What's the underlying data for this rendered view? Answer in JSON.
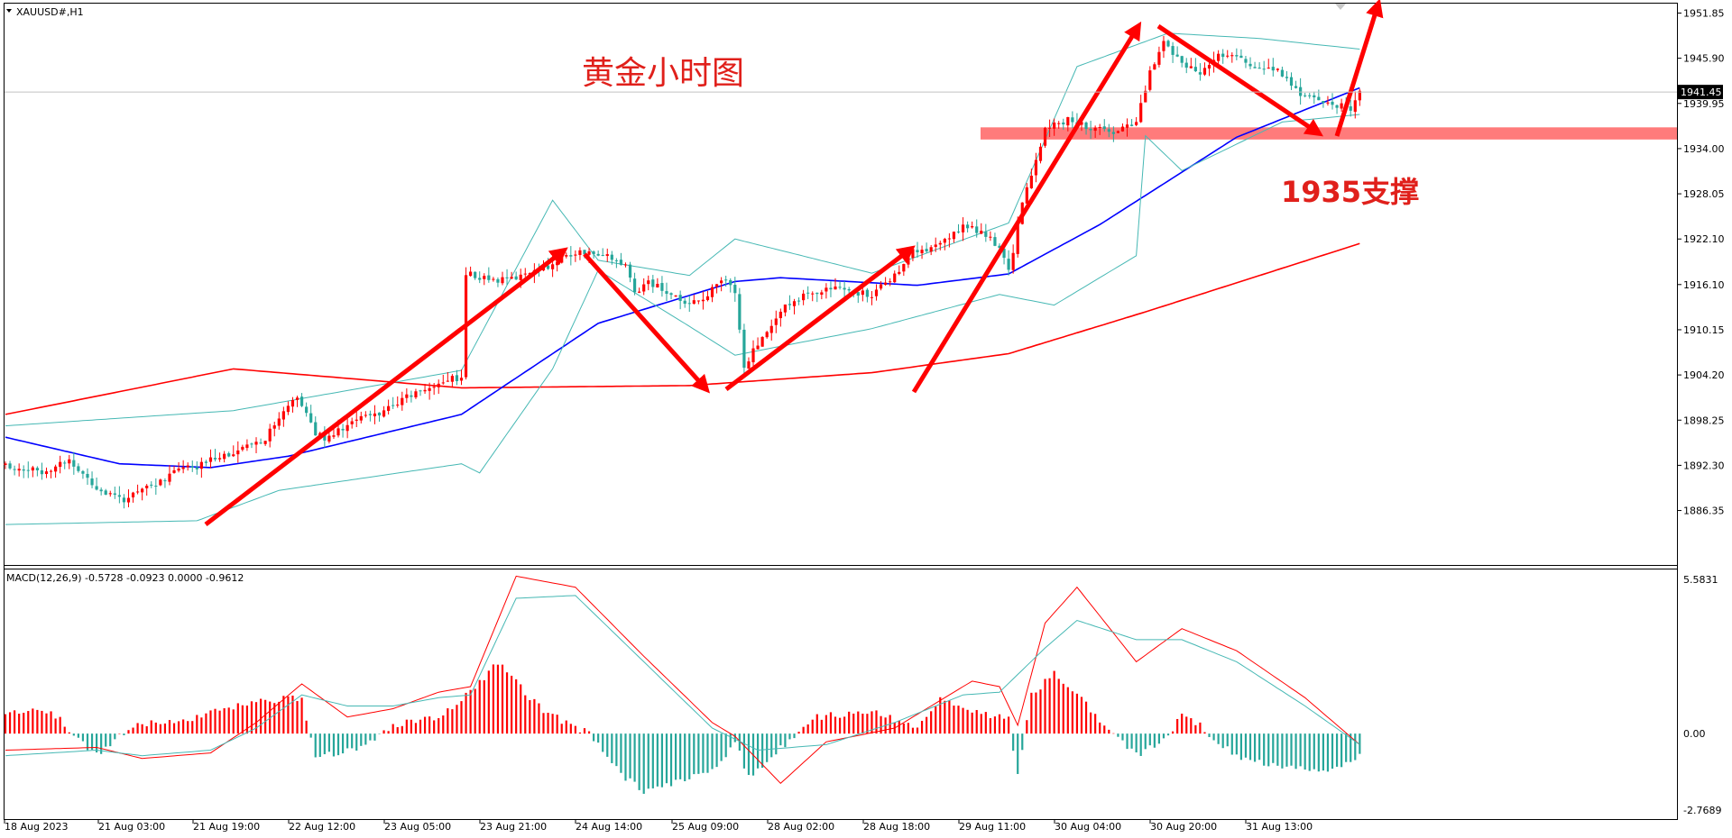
{
  "chart_data": [
    {
      "type": "candlestick",
      "symbol_title": "XAUUSD#,H1",
      "annotation_title": "黄金小时图",
      "annotation_support": "1935支撑",
      "current_price_label": "1941.45",
      "current_price": 1941.45,
      "ylim": [
        1882.5,
        1952.5
      ],
      "y_ticks": [
        "1951.85",
        "1945.90",
        "1939.95",
        "1934.00",
        "1928.05",
        "1922.10",
        "1916.10",
        "1910.15",
        "1904.20",
        "1898.25",
        "1892.30",
        "1886.35"
      ],
      "x_ticks": [
        "18 Aug 2023",
        "21 Aug 03:00",
        "21 Aug 19:00",
        "22 Aug 12:00",
        "23 Aug 05:00",
        "23 Aug 21:00",
        "24 Aug 14:00",
        "25 Aug 09:00",
        "28 Aug 02:00",
        "28 Aug 18:00",
        "29 Aug 11:00",
        "30 Aug 04:00",
        "30 Aug 20:00",
        "31 Aug 13:00"
      ],
      "support_zone": [
        1935.2,
        1936.8
      ],
      "close_path": [
        [
          0,
          1892.3
        ],
        [
          8,
          1891.5
        ],
        [
          14,
          1893.0
        ],
        [
          18,
          1890.5
        ],
        [
          22,
          1888.5
        ],
        [
          26,
          1887.5
        ],
        [
          30,
          1889.5
        ],
        [
          35,
          1890.2
        ],
        [
          38,
          1892.0
        ],
        [
          42,
          1891.8
        ],
        [
          45,
          1893.4
        ],
        [
          50,
          1894.0
        ],
        [
          56,
          1895.2
        ],
        [
          60,
          1898.2
        ],
        [
          64,
          1901.5
        ],
        [
          68,
          1896.5
        ],
        [
          70,
          1896.0
        ],
        [
          74,
          1897.2
        ],
        [
          78,
          1898.5
        ],
        [
          82,
          1899.2
        ],
        [
          86,
          1900.6
        ],
        [
          90,
          1901.8
        ],
        [
          94,
          1902.8
        ],
        [
          98,
          1903.8
        ],
        [
          100,
          1903.6
        ],
        [
          101,
          1917.5
        ],
        [
          105,
          1917.0
        ],
        [
          110,
          1916.6
        ],
        [
          115,
          1917.8
        ],
        [
          120,
          1918.8
        ],
        [
          125,
          1920.4
        ],
        [
          130,
          1920.3
        ],
        [
          133,
          1919.5
        ],
        [
          136,
          1918.5
        ],
        [
          138,
          1915.0
        ],
        [
          141,
          1916.5
        ],
        [
          146,
          1914.8
        ],
        [
          150,
          1913.2
        ],
        [
          154,
          1914.8
        ],
        [
          158,
          1917.0
        ],
        [
          160,
          1915.0
        ],
        [
          162,
          1905.2
        ],
        [
          166,
          1909.5
        ],
        [
          172,
          1913.8
        ],
        [
          178,
          1915.2
        ],
        [
          184,
          1915.5
        ],
        [
          190,
          1914.6
        ],
        [
          195,
          1917.4
        ],
        [
          199,
          1920.6
        ],
        [
          202,
          1920.3
        ],
        [
          206,
          1921.8
        ],
        [
          210,
          1923.9
        ],
        [
          214,
          1923.1
        ],
        [
          218,
          1920.8
        ],
        [
          220,
          1917.8
        ],
        [
          223,
          1926.5
        ],
        [
          228,
          1936.6
        ],
        [
          233,
          1937.8
        ],
        [
          238,
          1936.6
        ],
        [
          244,
          1936.2
        ],
        [
          248,
          1937.8
        ],
        [
          251,
          1944.0
        ],
        [
          254,
          1948.2
        ],
        [
          258,
          1945.2
        ],
        [
          262,
          1944.0
        ],
        [
          266,
          1946.7
        ],
        [
          270,
          1946.0
        ],
        [
          274,
          1944.8
        ],
        [
          278,
          1944.3
        ],
        [
          281,
          1943.6
        ],
        [
          284,
          1941.0
        ],
        [
          288,
          1940.2
        ],
        [
          292,
          1939.6
        ],
        [
          295,
          1939.4
        ],
        [
          297,
          1941.45
        ]
      ],
      "series": [
        {
          "name": "MA200",
          "color": "#ff0000",
          "values": [
            [
              0,
              1899.0
            ],
            [
              50,
              1905.0
            ],
            [
              100,
              1902.5
            ],
            [
              150,
              1902.8
            ],
            [
              190,
              1904.5
            ],
            [
              220,
              1907.0
            ],
            [
              250,
              1912.5
            ],
            [
              297,
              1921.5
            ]
          ]
        },
        {
          "name": "MA50",
          "color": "#0000ff",
          "values": [
            [
              0,
              1896.0
            ],
            [
              25,
              1892.5
            ],
            [
              45,
              1892.0
            ],
            [
              62,
              1893.5
            ],
            [
              100,
              1899.0
            ],
            [
              130,
              1911.0
            ],
            [
              160,
              1916.5
            ],
            [
              170,
              1917.0
            ],
            [
              200,
              1916.0
            ],
            [
              220,
              1917.5
            ],
            [
              240,
              1924.0
            ],
            [
              270,
              1935.5
            ],
            [
              297,
              1942.0
            ]
          ]
        },
        {
          "name": "BB-upper",
          "color": "#46b8b4",
          "values": [
            [
              0,
              1897.5
            ],
            [
              50,
              1899.5
            ],
            [
              100,
              1904.8
            ],
            [
              120,
              1927.2
            ],
            [
              130,
              1919.3
            ],
            [
              150,
              1917.3
            ],
            [
              160,
              1922.1
            ],
            [
              190,
              1917.6
            ],
            [
              220,
              1924.2
            ],
            [
              235,
              1944.8
            ],
            [
              255,
              1949.2
            ],
            [
              275,
              1948.5
            ],
            [
              297,
              1947.1
            ]
          ]
        },
        {
          "name": "BB-lower",
          "color": "#46b8b4",
          "values": [
            [
              0,
              1884.5
            ],
            [
              42,
              1885.0
            ],
            [
              60,
              1889.0
            ],
            [
              100,
              1892.5
            ],
            [
              104,
              1891.3
            ],
            [
              120,
              1905.0
            ],
            [
              130,
              1918.0
            ],
            [
              150,
              1910.6
            ],
            [
              160,
              1906.8
            ],
            [
              190,
              1910.3
            ],
            [
              218,
              1914.8
            ],
            [
              230,
              1913.4
            ],
            [
              248,
              1919.9
            ],
            [
              250,
              1935.7
            ],
            [
              258,
              1931.1
            ],
            [
              280,
              1937.5
            ],
            [
              297,
              1938.5
            ]
          ]
        }
      ]
    },
    {
      "type": "bar",
      "title": "MACD(12,26,9) -0.5728 -0.0923 0.0000 -0.9612",
      "ylim": [
        -2.7689,
        5.5831
      ],
      "y_ticks": [
        "5.5831",
        "0.00",
        "-2.7689"
      ],
      "histogram": [
        [
          0,
          0.8
        ],
        [
          10,
          0.8
        ],
        [
          20,
          -0.8
        ],
        [
          28,
          0.3
        ],
        [
          40,
          0.5
        ],
        [
          45,
          0.8
        ],
        [
          58,
          1.2
        ],
        [
          65,
          1.3
        ],
        [
          68,
          -0.9
        ],
        [
          78,
          -0.5
        ],
        [
          85,
          0.3
        ],
        [
          95,
          0.6
        ],
        [
          102,
          1.5
        ],
        [
          108,
          2.6
        ],
        [
          110,
          2.2
        ],
        [
          118,
          0.8
        ],
        [
          128,
          0.0
        ],
        [
          135,
          -1.5
        ],
        [
          140,
          -2.1
        ],
        [
          150,
          -1.6
        ],
        [
          155,
          -1.4
        ],
        [
          160,
          -0.3
        ],
        [
          163,
          -1.6
        ],
        [
          168,
          -0.8
        ],
        [
          178,
          0.6
        ],
        [
          190,
          0.8
        ],
        [
          200,
          0.2
        ],
        [
          205,
          1.3
        ],
        [
          210,
          0.9
        ],
        [
          215,
          0.7
        ],
        [
          220,
          0.5
        ],
        [
          222,
          -1.5
        ],
        [
          225,
          1.4
        ],
        [
          230,
          2.2
        ],
        [
          235,
          1.5
        ],
        [
          240,
          0.4
        ],
        [
          248,
          -0.8
        ],
        [
          255,
          -0.1
        ],
        [
          258,
          0.7
        ],
        [
          262,
          0.3
        ],
        [
          265,
          -0.2
        ],
        [
          270,
          -0.8
        ],
        [
          280,
          -1.2
        ],
        [
          290,
          -1.4
        ],
        [
          297,
          -0.8
        ]
      ],
      "series": [
        {
          "name": "MACD",
          "color": "#ff0000",
          "values": [
            [
              0,
              -0.6
            ],
            [
              20,
              -0.5
            ],
            [
              30,
              -0.9
            ],
            [
              45,
              -0.7
            ],
            [
              55,
              0.4
            ],
            [
              65,
              1.8
            ],
            [
              75,
              0.6
            ],
            [
              85,
              0.9
            ],
            [
              95,
              1.5
            ],
            [
              102,
              1.7
            ],
            [
              112,
              5.7
            ],
            [
              125,
              5.3
            ],
            [
              140,
              2.8
            ],
            [
              155,
              0.4
            ],
            [
              160,
              -0.1
            ],
            [
              170,
              -1.8
            ],
            [
              180,
              -0.3
            ],
            [
              195,
              0.2
            ],
            [
              205,
              1.2
            ],
            [
              212,
              1.9
            ],
            [
              218,
              1.7
            ],
            [
              222,
              0.3
            ],
            [
              228,
              4.0
            ],
            [
              235,
              5.3
            ],
            [
              248,
              2.6
            ],
            [
              258,
              3.8
            ],
            [
              270,
              3.0
            ],
            [
              285,
              1.3
            ],
            [
              297,
              -0.4
            ]
          ]
        },
        {
          "name": "Signal",
          "color": "#46b8b4",
          "values": [
            [
              0,
              -0.8
            ],
            [
              20,
              -0.6
            ],
            [
              30,
              -0.8
            ],
            [
              45,
              -0.6
            ],
            [
              55,
              0.2
            ],
            [
              65,
              1.4
            ],
            [
              75,
              1.0
            ],
            [
              85,
              1.0
            ],
            [
              95,
              1.3
            ],
            [
              102,
              1.4
            ],
            [
              112,
              4.9
            ],
            [
              125,
              5.0
            ],
            [
              140,
              2.6
            ],
            [
              155,
              0.2
            ],
            [
              165,
              -0.6
            ],
            [
              180,
              -0.4
            ],
            [
              195,
              0.4
            ],
            [
              210,
              1.4
            ],
            [
              218,
              1.5
            ],
            [
              228,
              3.1
            ],
            [
              235,
              4.1
            ],
            [
              248,
              3.4
            ],
            [
              258,
              3.4
            ],
            [
              270,
              2.6
            ],
            [
              285,
              1.0
            ],
            [
              297,
              -0.4
            ]
          ]
        }
      ]
    }
  ]
}
